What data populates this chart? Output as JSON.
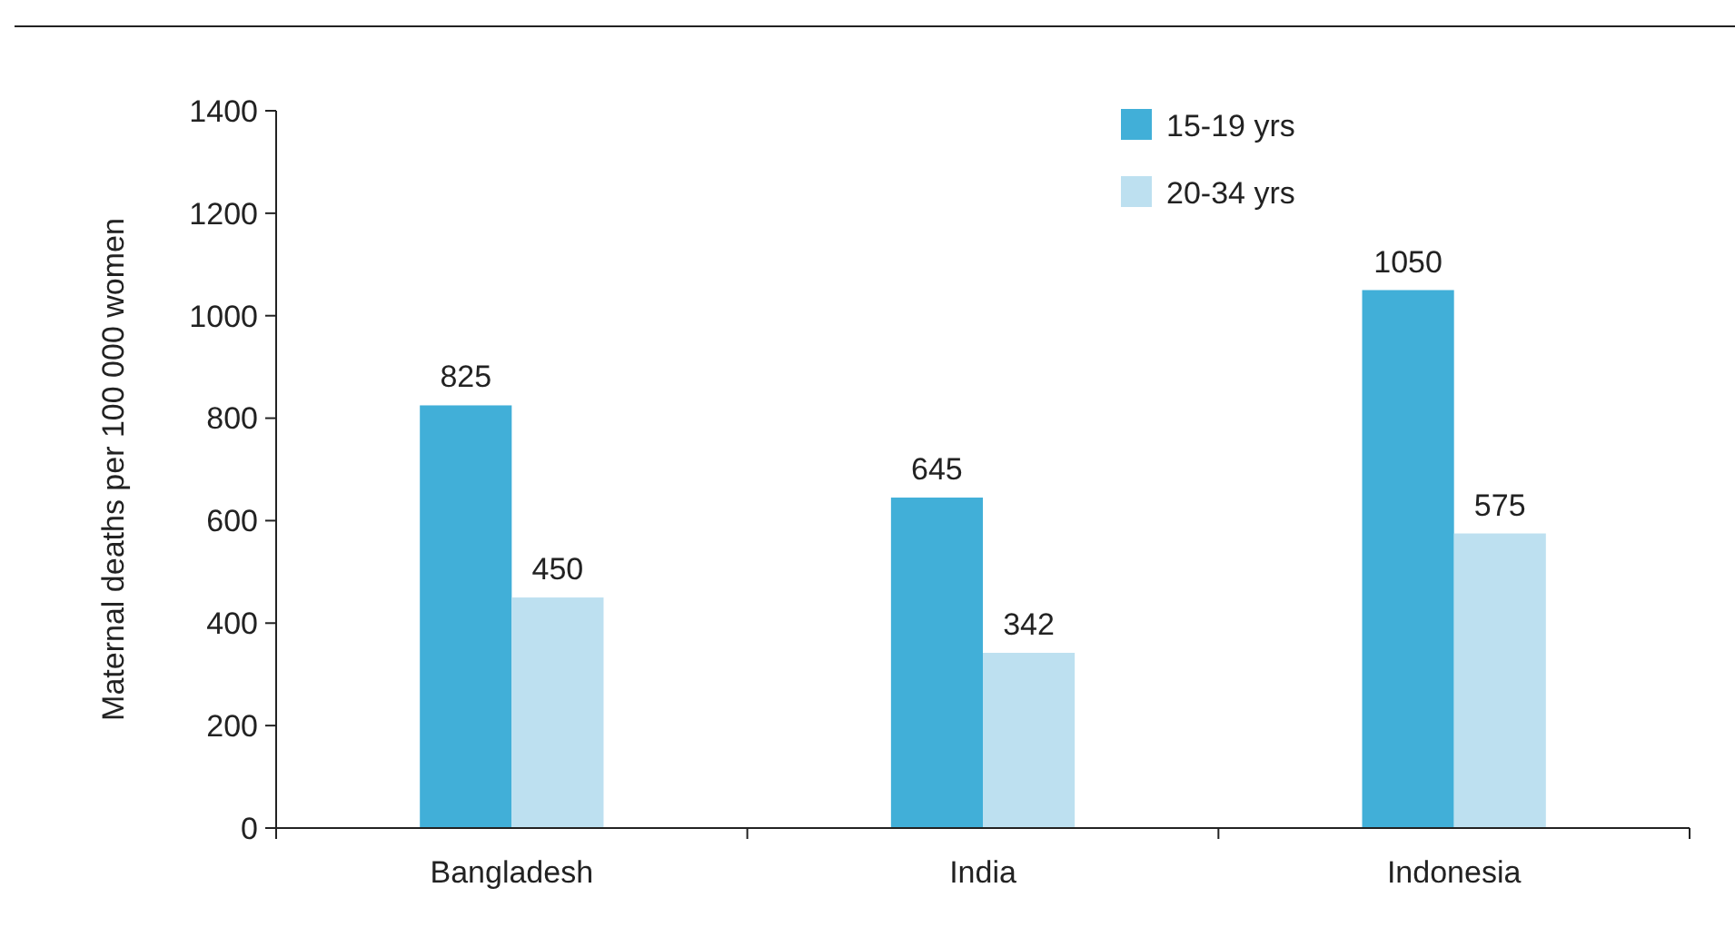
{
  "chart_data": {
    "type": "bar",
    "ylabel": "Maternal deaths per 100 000 women",
    "categories": [
      "Bangladesh",
      "India",
      "Indonesia"
    ],
    "series": [
      {
        "name": "15-19 yrs",
        "color": "#41afd8",
        "values": [
          825,
          645,
          1050
        ]
      },
      {
        "name": "20-34 yrs",
        "color": "#bde0f0",
        "values": [
          450,
          342,
          575
        ]
      }
    ],
    "ylim": [
      0,
      1400
    ],
    "yticks": [
      0,
      200,
      400,
      600,
      800,
      1000,
      1200,
      1400
    ],
    "data_labels": true,
    "legend": "top right",
    "grid": false
  }
}
